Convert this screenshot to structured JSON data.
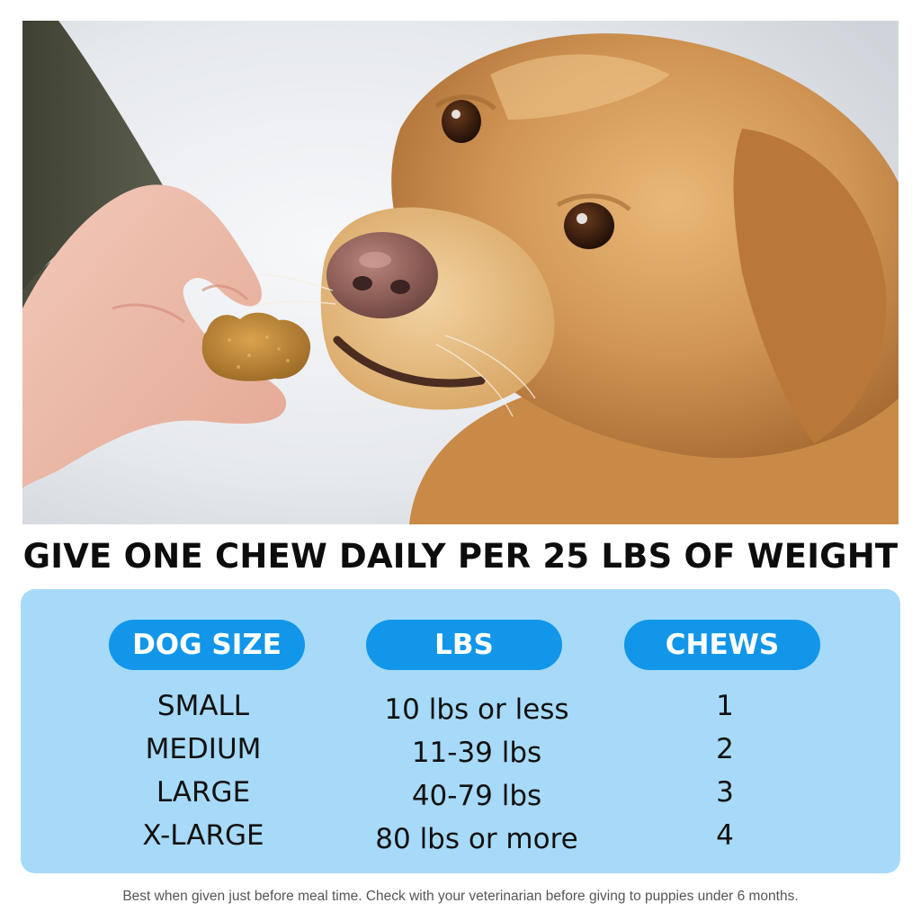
{
  "headline": "GIVE ONE CHEW DAILY PER 25 LBS OF WEIGHT",
  "table": {
    "headers": {
      "size": "DOG SIZE",
      "lbs": "LBS",
      "chews": "CHEWS"
    },
    "rows": [
      {
        "size": "SMALL",
        "lbs": "10 lbs or less",
        "chews": "1"
      },
      {
        "size": "MEDIUM",
        "lbs": "11-39 lbs",
        "chews": "2"
      },
      {
        "size": "LARGE",
        "lbs": "40-79 lbs",
        "chews": "3"
      },
      {
        "size": "X-LARGE",
        "lbs": "80 lbs or more",
        "chews": "4"
      }
    ]
  },
  "footnote": "Best when given just before meal time. Check with your veterinarian before giving to puppies under 6 months.",
  "colors": {
    "panel": "#a6daf8",
    "pill": "#1196ea",
    "headline": "#0d0d0d"
  }
}
